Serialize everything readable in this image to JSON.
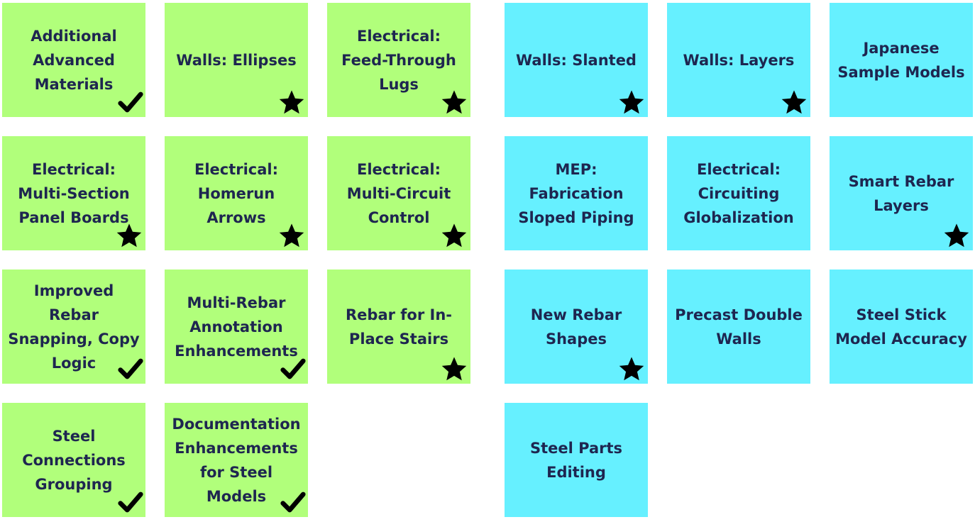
{
  "colors": {
    "green": "#b1ff7b",
    "blue": "#66f0ff",
    "text": "#1e2650",
    "icon": "#000000"
  },
  "tiles": [
    {
      "label": "Additional Advanced Materials",
      "color": "green",
      "icon": "check-icon",
      "col": 0,
      "row": 0
    },
    {
      "label": "Walls: Ellipses",
      "color": "green",
      "icon": "star-icon",
      "col": 1,
      "row": 0
    },
    {
      "label": "Electrical: Feed-Through Lugs",
      "color": "green",
      "icon": "star-icon",
      "col": 2,
      "row": 0
    },
    {
      "label": "Walls: Slanted",
      "color": "blue",
      "icon": "star-icon",
      "col": 3,
      "row": 0
    },
    {
      "label": "Walls: Layers",
      "color": "blue",
      "icon": "star-icon",
      "col": 4,
      "row": 0
    },
    {
      "label": "Japanese Sample Models",
      "color": "blue",
      "icon": "",
      "col": 5,
      "row": 0
    },
    {
      "label": "Electrical: Multi-Section Panel Boards",
      "color": "green",
      "icon": "star-icon",
      "col": 0,
      "row": 1
    },
    {
      "label": "Electrical: Homerun Arrows",
      "color": "green",
      "icon": "star-icon",
      "col": 1,
      "row": 1
    },
    {
      "label": "Electrical: Multi-Circuit Control",
      "color": "green",
      "icon": "star-icon",
      "col": 2,
      "row": 1
    },
    {
      "label": "MEP: Fabrication Sloped Piping",
      "color": "blue",
      "icon": "",
      "col": 3,
      "row": 1
    },
    {
      "label": "Electrical: Circuiting Globalization",
      "color": "blue",
      "icon": "",
      "col": 4,
      "row": 1
    },
    {
      "label": "Smart Rebar Layers",
      "color": "blue",
      "icon": "star-icon",
      "col": 5,
      "row": 1
    },
    {
      "label": "Improved Rebar Snapping, Copy Logic",
      "color": "green",
      "icon": "check-icon",
      "col": 0,
      "row": 2
    },
    {
      "label": "Multi-Rebar Annotation Enhancements",
      "color": "green",
      "icon": "check-icon",
      "col": 1,
      "row": 2
    },
    {
      "label": "Rebar for In-Place Stairs",
      "color": "green",
      "icon": "star-icon",
      "col": 2,
      "row": 2
    },
    {
      "label": "New Rebar Shapes",
      "color": "blue",
      "icon": "star-icon",
      "col": 3,
      "row": 2
    },
    {
      "label": "Precast Double Walls",
      "color": "blue",
      "icon": "",
      "col": 4,
      "row": 2
    },
    {
      "label": "Steel Stick Model Accuracy",
      "color": "blue",
      "icon": "",
      "col": 5,
      "row": 2
    },
    {
      "label": "Steel Connections Grouping",
      "color": "green",
      "icon": "check-icon",
      "col": 0,
      "row": 3
    },
    {
      "label": "Documentation Enhancements for Steel Models",
      "color": "green",
      "icon": "check-icon",
      "col": 1,
      "row": 3
    },
    {
      "label": "Steel Parts Editing",
      "color": "blue",
      "icon": "",
      "col": 3,
      "row": 3
    }
  ]
}
